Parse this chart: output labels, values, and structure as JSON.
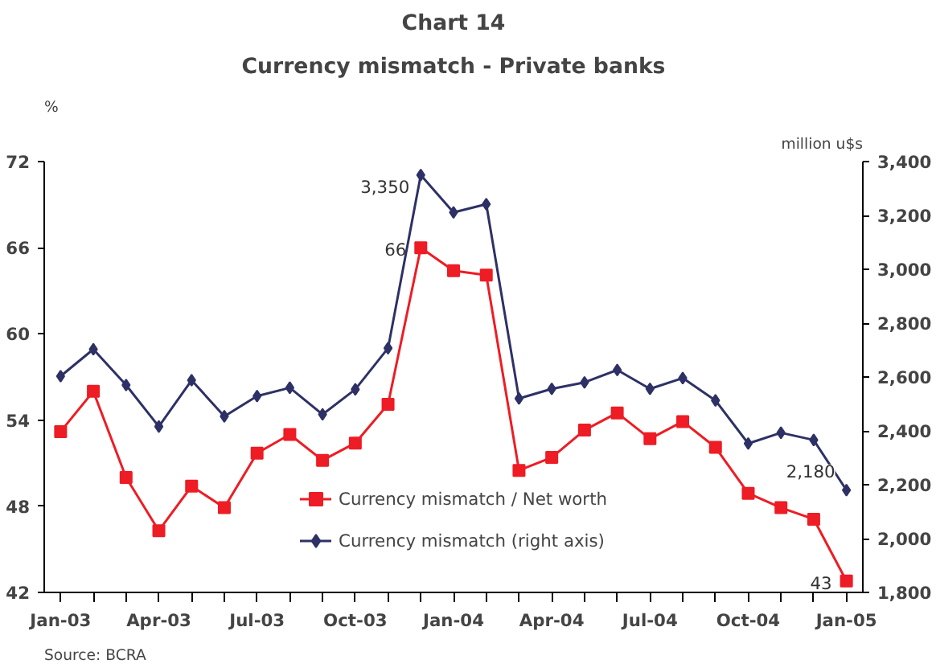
{
  "chart_data": {
    "type": "line",
    "title": "Chart 14",
    "subtitle": "Currency mismatch - Private banks",
    "ylabel": "%",
    "y2label": "million u$s",
    "categories": [
      "Jan-03",
      null,
      null,
      "Apr-03",
      null,
      null,
      "Jul-03",
      null,
      null,
      "Oct-03",
      null,
      null,
      "Jan-04",
      null,
      null,
      "Apr-04",
      null,
      null,
      "Jul-04",
      null,
      null,
      "Oct-04",
      null,
      null,
      "Jan-05"
    ],
    "series": [
      {
        "name": "Currency mismatch / Net worth",
        "color": "#ee1c24",
        "marker": "square",
        "values": [
          53.2,
          56.0,
          50.0,
          46.3,
          49.4,
          47.9,
          51.7,
          53.0,
          51.2,
          52.4,
          55.1,
          66.0,
          64.4,
          64.1,
          50.5,
          51.4,
          53.3,
          54.5,
          52.7,
          53.9,
          52.1,
          48.9,
          47.9,
          47.1,
          42.8
        ],
        "value_labels": [
          null,
          null,
          null,
          null,
          null,
          null,
          null,
          null,
          null,
          null,
          null,
          "66",
          null,
          null,
          null,
          null,
          null,
          null,
          null,
          null,
          null,
          null,
          null,
          null,
          "43"
        ]
      },
      {
        "name": "Currency mismatch (right axis)",
        "color": "#2e3166",
        "marker": "diamond",
        "axis": "y2",
        "values": [
          2603,
          2703,
          2570,
          2416,
          2588,
          2454,
          2529,
          2560,
          2461,
          2554,
          2707,
          3350,
          3211,
          3242,
          2520,
          2556,
          2580,
          2626,
          2556,
          2596,
          2513,
          2353,
          2393,
          2366,
          2180
        ],
        "value_labels": [
          null,
          null,
          null,
          null,
          null,
          null,
          null,
          null,
          null,
          null,
          null,
          "3,350",
          null,
          null,
          null,
          null,
          null,
          null,
          null,
          null,
          null,
          null,
          null,
          null,
          "2,180"
        ]
      }
    ],
    "ylim": [
      42,
      72
    ],
    "yticks": [
      42,
      48,
      54,
      60,
      66,
      72
    ],
    "y2lim": [
      1800,
      3400
    ],
    "y2ticks": [
      {
        "value": 1800,
        "label": "1,800"
      },
      {
        "value": 2000,
        "label": "2,000"
      },
      {
        "value": 2200,
        "label": "2,200"
      },
      {
        "value": 2400,
        "label": "2,400"
      },
      {
        "value": 2600,
        "label": "2,600"
      },
      {
        "value": 2800,
        "label": "2,800"
      },
      {
        "value": 3000,
        "label": "3,000"
      },
      {
        "value": 3200,
        "label": "3,200"
      },
      {
        "value": 3400,
        "label": "3,400"
      }
    ],
    "legend": "bottom",
    "grid": false,
    "line_style": "solid",
    "annotations": [
      "Source: BCRA"
    ]
  }
}
